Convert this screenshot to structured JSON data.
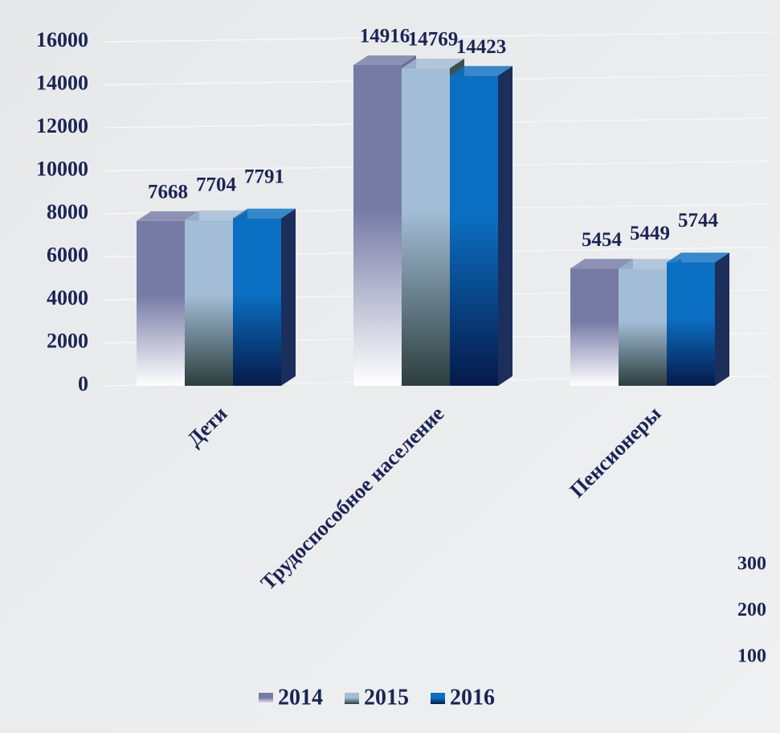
{
  "chart_data": {
    "type": "bar3d",
    "categories": [
      "Дети",
      "Трудоспособное население",
      "Пенсионеры"
    ],
    "series": [
      {
        "name": "2014",
        "color": "#767ba6",
        "values": [
          7668,
          14916,
          5454
        ]
      },
      {
        "name": "2015",
        "color": "#a3bdd6",
        "values": [
          7704,
          14769,
          5449
        ]
      },
      {
        "name": "2016",
        "color": "#0a6fc2",
        "values": [
          7791,
          14423,
          5744
        ]
      }
    ],
    "ylim": [
      0,
      16000
    ],
    "yticks": [
      0,
      2000,
      4000,
      6000,
      8000,
      10000,
      12000,
      14000,
      16000
    ],
    "grid": true,
    "legend": "bottom",
    "annotations": [
      "300",
      "200",
      "100"
    ]
  }
}
